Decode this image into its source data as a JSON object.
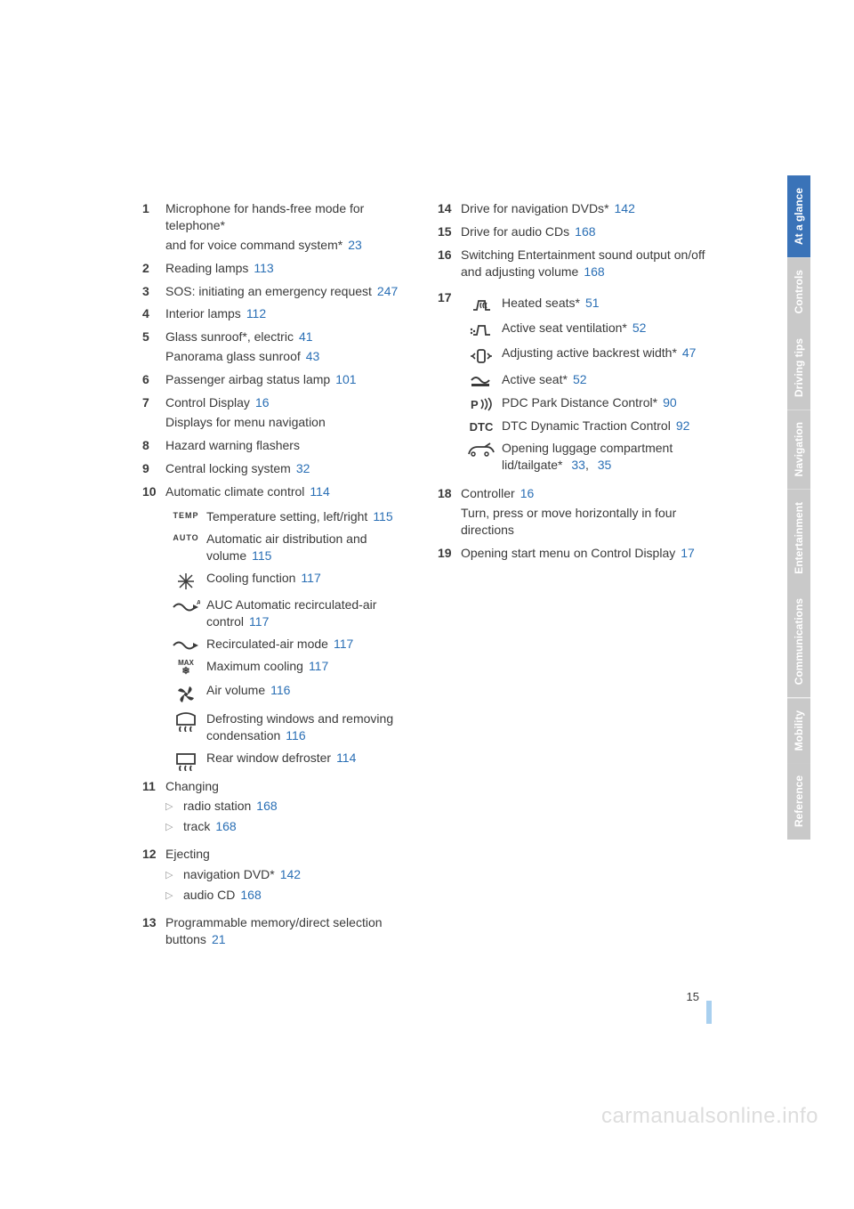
{
  "link_color": "#2a6fb5",
  "body_color": "#3a3a3a",
  "muted_color": "#c9c9c9",
  "active_tab_color": "#3a73b8",
  "leftItems": [
    {
      "n": "1",
      "lines": [
        {
          "text": "Microphone for hands-free mode for telephone",
          "star": true
        },
        {
          "text": "and for voice command system",
          "star": true,
          "ref": "23"
        }
      ]
    },
    {
      "n": "2",
      "lines": [
        {
          "text": "Reading lamps",
          "ref": "113"
        }
      ]
    },
    {
      "n": "3",
      "lines": [
        {
          "text": "SOS: initiating an emergency request",
          "ref": "247"
        }
      ]
    },
    {
      "n": "4",
      "lines": [
        {
          "text": "Interior lamps",
          "ref": "112"
        }
      ]
    },
    {
      "n": "5",
      "lines": [
        {
          "text": "Glass sunroof",
          "star": true,
          "trail": ", electric",
          "ref": "41"
        },
        {
          "text": "Panorama glass sunroof",
          "ref": "43"
        }
      ]
    },
    {
      "n": "6",
      "lines": [
        {
          "text": "Passenger airbag status lamp",
          "ref": "101"
        }
      ]
    },
    {
      "n": "7",
      "lines": [
        {
          "text": "Control Display",
          "ref": "16"
        },
        {
          "text": "Displays for menu navigation"
        }
      ]
    },
    {
      "n": "8",
      "lines": [
        {
          "text": "Hazard warning flashers"
        }
      ]
    },
    {
      "n": "9",
      "lines": [
        {
          "text": "Central locking system",
          "ref": "32"
        }
      ]
    },
    {
      "n": "10",
      "lines": [
        {
          "text": "Automatic climate control",
          "ref": "114"
        }
      ]
    }
  ],
  "climateSub": [
    {
      "icon": "temp",
      "text": "Temperature setting, left/right",
      "ref": "115"
    },
    {
      "icon": "auto",
      "text": "Automatic air distribution and volume",
      "ref": "115"
    },
    {
      "icon": "snow",
      "text": "Cooling function",
      "ref": "117"
    },
    {
      "icon": "aucA",
      "text": "AUC Automatic recirculated-air control",
      "ref": "117"
    },
    {
      "icon": "recirc",
      "text": "Recirculated-air mode",
      "ref": "117"
    },
    {
      "icon": "max",
      "text": "Maximum cooling",
      "ref": "117"
    },
    {
      "icon": "fan",
      "text": "Air volume",
      "ref": "116"
    },
    {
      "icon": "defrostF",
      "text": "Defrosting windows and removing condensation",
      "ref": "116"
    },
    {
      "icon": "defrostR",
      "text": "Rear window defroster",
      "ref": "114"
    }
  ],
  "leftItems2": [
    {
      "n": "11",
      "text": "Changing",
      "bullets": [
        {
          "text": "radio station",
          "ref": "168"
        },
        {
          "text": "track",
          "ref": "168"
        }
      ]
    },
    {
      "n": "12",
      "text": "Ejecting",
      "bullets": [
        {
          "text": "navigation DVD",
          "star": true,
          "ref": "142"
        },
        {
          "text": "audio CD",
          "ref": "168"
        }
      ]
    },
    {
      "n": "13",
      "lines": [
        {
          "text": "Programmable memory/direct selection buttons",
          "ref": "21"
        }
      ]
    }
  ],
  "rightItems": [
    {
      "n": "14",
      "lines": [
        {
          "text": "Drive for navigation DVDs",
          "star": true,
          "ref": "142"
        }
      ]
    },
    {
      "n": "15",
      "lines": [
        {
          "text": "Drive for audio CDs",
          "ref": "168"
        }
      ]
    },
    {
      "n": "16",
      "lines": [
        {
          "text": "Switching Entertainment sound output on/off and adjusting volume",
          "ref": "168"
        }
      ]
    }
  ],
  "item17": {
    "n": "17",
    "sub": [
      {
        "icon": "heatedSeat",
        "text": "Heated seats",
        "star": true,
        "ref": "51"
      },
      {
        "icon": "ventSeat",
        "text": "Active seat ventilation",
        "star": true,
        "ref": "52"
      },
      {
        "icon": "backrest",
        "text": "Adjusting active backrest width",
        "star": true,
        "ref": "47"
      },
      {
        "icon": "activeSeat",
        "text": "Active seat",
        "star": true,
        "ref": "52"
      },
      {
        "icon": "pdc",
        "text": "PDC Park Distance Control",
        "star": true,
        "ref": "90"
      },
      {
        "icon": "dtc",
        "text": "DTC Dynamic Traction Control",
        "ref": "92"
      },
      {
        "icon": "luggage",
        "text": "Opening luggage compartment lid/tailgate",
        "star": true,
        "refs": [
          "33",
          "35"
        ]
      }
    ]
  },
  "rightItems2": [
    {
      "n": "18",
      "lines": [
        {
          "text": "Controller",
          "ref": "16"
        },
        {
          "text": "Turn, press or move horizontally in four directions"
        }
      ]
    },
    {
      "n": "19",
      "lines": [
        {
          "text": "Opening start menu on Control Display",
          "ref": "17"
        }
      ]
    }
  ],
  "tabs": [
    {
      "label": "At a glance",
      "active": true
    },
    {
      "label": "Controls",
      "active": false
    },
    {
      "label": "Driving tips",
      "active": false
    },
    {
      "label": "Navigation",
      "active": false
    },
    {
      "label": "Entertainment",
      "active": false
    },
    {
      "label": "Communications",
      "active": false
    },
    {
      "label": "Mobility",
      "active": false
    },
    {
      "label": "Reference",
      "active": false
    }
  ],
  "pageNumber": "15",
  "watermark": "carmanualsonline.info"
}
